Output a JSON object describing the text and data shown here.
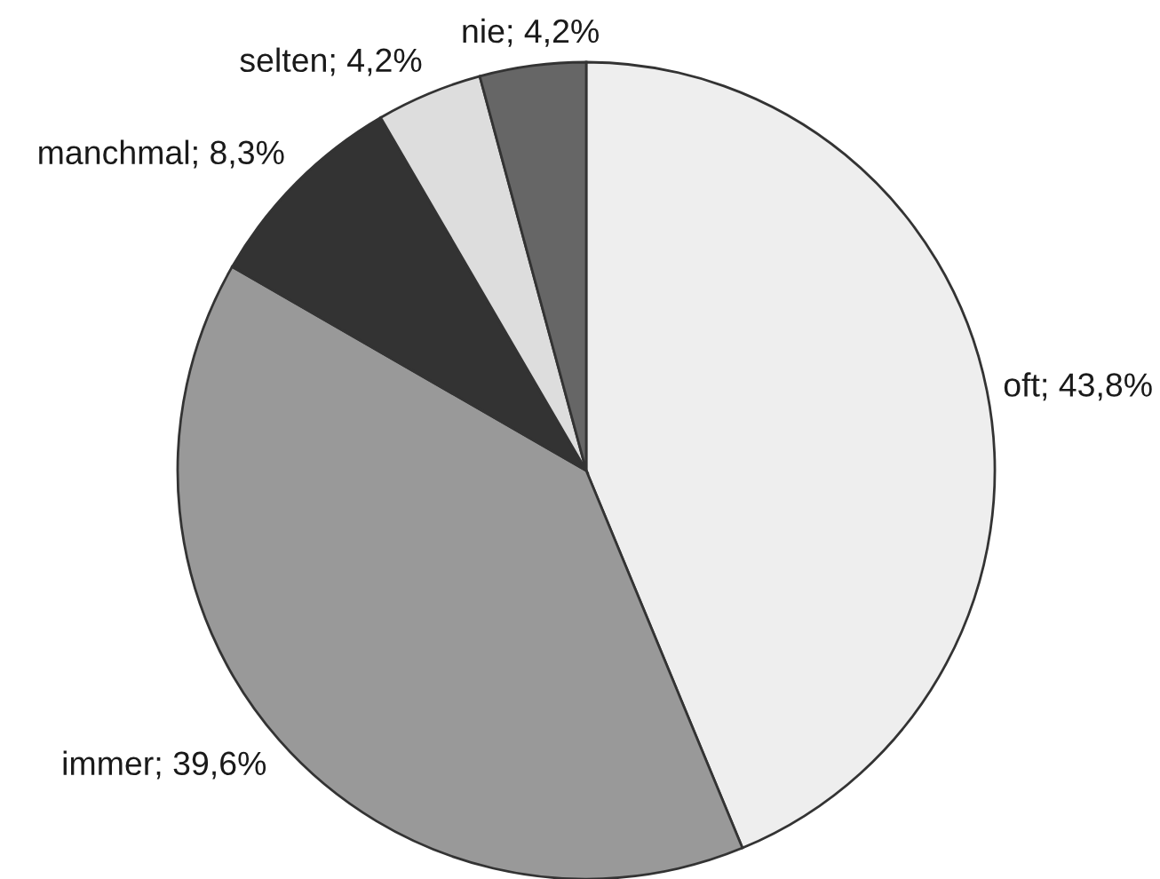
{
  "chart_data": {
    "type": "pie",
    "categories": [
      "oft",
      "immer",
      "manchmal",
      "selten",
      "nie"
    ],
    "values": [
      43.8,
      39.6,
      8.3,
      4.2,
      4.2
    ],
    "colors": [
      "#eeeeee",
      "#999999",
      "#333333",
      "#dddddd",
      "#666666"
    ],
    "value_labels": [
      "43,8%",
      "39,6%",
      "8,3%",
      "4,2%",
      "4,2%"
    ]
  }
}
